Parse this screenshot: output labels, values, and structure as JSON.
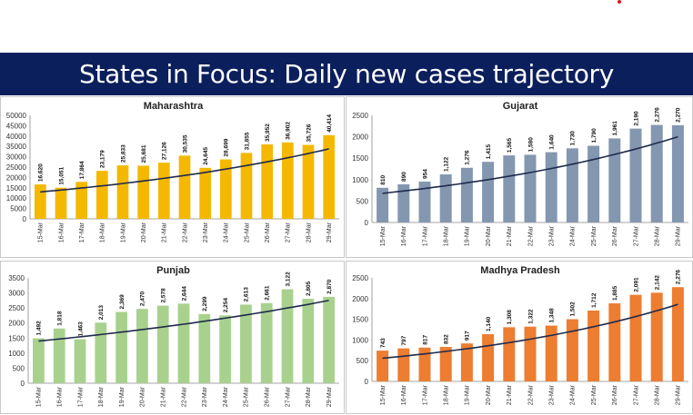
{
  "header": {
    "title": "States in Focus: Daily new cases trajectory"
  },
  "chart_data": [
    {
      "type": "bar",
      "title": "Maharashtra",
      "color": "#f5b800",
      "categories": [
        "15-Mar",
        "16-Mar",
        "17-Mar",
        "18-Mar",
        "19-Mar",
        "20-Mar",
        "21-Mar",
        "22-Mar",
        "23-Mar",
        "24-Mar",
        "25-Mar",
        "26-Mar",
        "27-Mar",
        "28-Mar",
        "29-Mar"
      ],
      "values": [
        16620,
        15051,
        17864,
        23179,
        25833,
        25681,
        27126,
        30535,
        24645,
        28699,
        31855,
        35952,
        36902,
        35726,
        40414
      ],
      "labels": [
        "16,620",
        "15,051",
        "17,864",
        "23,179",
        "25,833",
        "25,681",
        "27,126",
        "30,535",
        "24,645",
        "28,699",
        "31,855",
        "35,952",
        "36,902",
        "35,726",
        "40,414"
      ],
      "yticks": [
        "0",
        "5000",
        "10000",
        "15000",
        "20000",
        "25000",
        "30000",
        "35000",
        "40000",
        "45000",
        "50000"
      ],
      "ylim": [
        0,
        50000
      ],
      "trend": [
        13000,
        33800
      ]
    },
    {
      "type": "bar",
      "title": "Gujarat",
      "color": "#8497b0",
      "categories": [
        "15-Mar",
        "16-Mar",
        "17-Mar",
        "18-Mar",
        "19-Mar",
        "20-Mar",
        "21-Mar",
        "22-Mar",
        "23-Mar",
        "24-Mar",
        "25-Mar",
        "26-Mar",
        "27-Mar",
        "28-Mar",
        "29-Mar"
      ],
      "values": [
        810,
        890,
        954,
        1122,
        1276,
        1415,
        1565,
        1580,
        1640,
        1730,
        1790,
        1961,
        2190,
        2276,
        2270
      ],
      "labels": [
        "810",
        "890",
        "954",
        "1,122",
        "1,276",
        "1,415",
        "1,565",
        "1,580",
        "1,640",
        "1,730",
        "1,790",
        "1,961",
        "2,190",
        "2,276",
        "2,270"
      ],
      "yticks": [
        "0",
        "500",
        "1000",
        "1500",
        "2000",
        "2500"
      ],
      "ylim": [
        0,
        2500
      ],
      "trend": [
        680,
        2000
      ]
    },
    {
      "type": "bar",
      "title": "Punjab",
      "color": "#a9d18e",
      "categories": [
        "15-Mar",
        "16-Mar",
        "17-Mar",
        "18-Mar",
        "19-Mar",
        "20-Mar",
        "21-Mar",
        "22-Mar",
        "23-Mar",
        "24-Mar",
        "25-Mar",
        "26-Mar",
        "27-Mar",
        "28-Mar",
        "29-Mar"
      ],
      "values": [
        1492,
        1818,
        1463,
        2013,
        2369,
        2470,
        2578,
        2644,
        2299,
        2254,
        2613,
        2661,
        3122,
        2805,
        2870
      ],
      "labels": [
        "1,492",
        "1,818",
        "1,463",
        "2,013",
        "2,369",
        "2,470",
        "2,578",
        "2,644",
        "2,299",
        "2,254",
        "2,613",
        "2,661",
        "3,122",
        "2,805",
        "2,870"
      ],
      "yticks": [
        "0",
        "500",
        "1000",
        "1500",
        "2000",
        "2500",
        "3000",
        "3500"
      ],
      "ylim": [
        0,
        3500
      ],
      "trend": [
        1400,
        2750
      ]
    },
    {
      "type": "bar",
      "title": "Madhya Pradesh",
      "color": "#ed7d31",
      "categories": [
        "15-Mar",
        "16-Mar",
        "17-Mar",
        "18-Mar",
        "19-Mar",
        "20-Mar",
        "21-Mar",
        "22-Mar",
        "23-Mar",
        "24-Mar",
        "25-Mar",
        "26-Mar",
        "27-Mar",
        "28-Mar",
        "29-Mar"
      ],
      "values": [
        743,
        797,
        817,
        832,
        917,
        1140,
        1308,
        1322,
        1348,
        1502,
        1712,
        1885,
        2091,
        2142,
        2276
      ],
      "labels": [
        "743",
        "797",
        "817",
        "832",
        "917",
        "1,140",
        "1,308",
        "1,322",
        "1,348",
        "1,502",
        "1,712",
        "1,885",
        "2,091",
        "2,142",
        "2,276"
      ],
      "yticks": [
        "0",
        "500",
        "1000",
        "1500",
        "2000",
        "2500"
      ],
      "ylim": [
        0,
        2500
      ],
      "trend": [
        560,
        1860
      ]
    }
  ]
}
